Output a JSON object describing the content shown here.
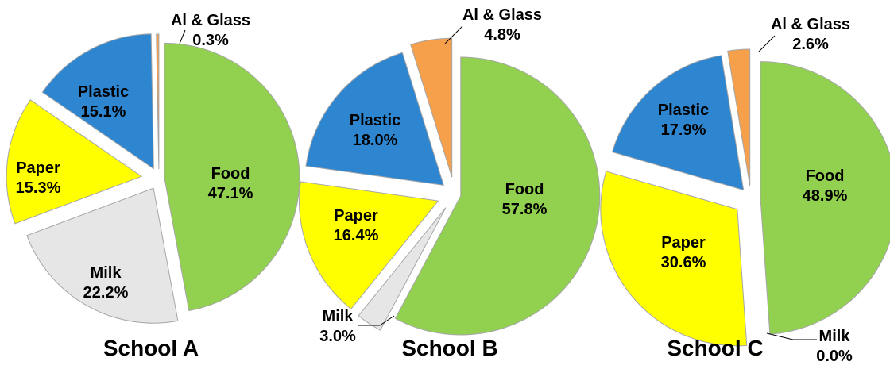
{
  "colors": {
    "Food": "#92D050",
    "Milk": "#E6E6E6",
    "Paper": "#FFFF00",
    "Plastic": "#2E86D1",
    "Al & Glass": "#F7A04B",
    "slice_stroke": "#A6A6A6",
    "leader_line": "#000000"
  },
  "chart_data": [
    {
      "type": "pie",
      "title": "School A",
      "start_angle_deg": 0,
      "direction": "clockwise",
      "exploded": true,
      "slices": [
        {
          "label": "Food",
          "value": 47.1,
          "display": "47.1%"
        },
        {
          "label": "Milk",
          "value": 22.2,
          "display": "22.2%"
        },
        {
          "label": "Paper",
          "value": 15.3,
          "display": "15.3%"
        },
        {
          "label": "Plastic",
          "value": 15.1,
          "display": "15.1%"
        },
        {
          "label": "Al & Glass",
          "value": 0.3,
          "display": "0.3%"
        }
      ]
    },
    {
      "type": "pie",
      "title": "School B",
      "start_angle_deg": 0,
      "direction": "clockwise",
      "exploded": true,
      "slices": [
        {
          "label": "Food",
          "value": 57.8,
          "display": "57.8%"
        },
        {
          "label": "Milk",
          "value": 3.0,
          "display": "3.0%"
        },
        {
          "label": "Paper",
          "value": 16.4,
          "display": "16.4%"
        },
        {
          "label": "Plastic",
          "value": 18.0,
          "display": "18.0%"
        },
        {
          "label": "Al & Glass",
          "value": 4.8,
          "display": "4.8%"
        }
      ]
    },
    {
      "type": "pie",
      "title": "School C",
      "start_angle_deg": 0,
      "direction": "clockwise",
      "exploded": true,
      "slices": [
        {
          "label": "Food",
          "value": 48.9,
          "display": "48.9%"
        },
        {
          "label": "Milk",
          "value": 0.0,
          "display": "0.0%"
        },
        {
          "label": "Paper",
          "value": 30.6,
          "display": "30.6%"
        },
        {
          "label": "Plastic",
          "value": 17.9,
          "display": "17.9%"
        },
        {
          "label": "Al & Glass",
          "value": 2.6,
          "display": "2.6%"
        }
      ]
    }
  ]
}
